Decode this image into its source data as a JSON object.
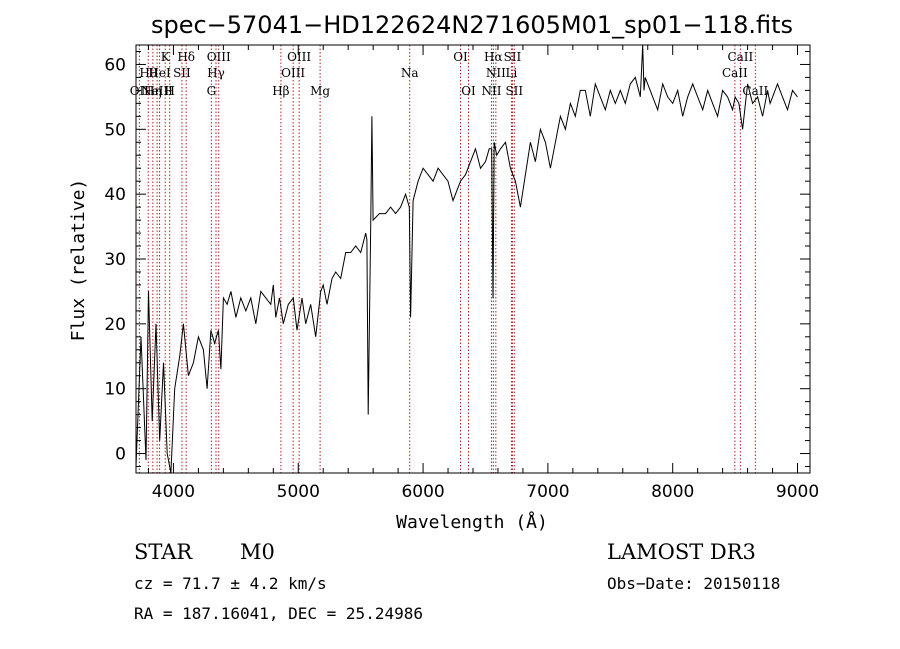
{
  "chart_data": {
    "type": "line",
    "title": "spec−57041−HD122624N271605M01_sp01−118.fits",
    "xlabel": "Wavelength (Å)",
    "ylabel": "Flux (relative)",
    "xlim": [
      3700,
      9100
    ],
    "ylim": [
      -3,
      63
    ],
    "xticks": [
      4000,
      5000,
      6000,
      7000,
      8000,
      9000
    ],
    "yticks": [
      0,
      10,
      20,
      30,
      40,
      50,
      60
    ],
    "grid": false,
    "series": [
      {
        "x": [
          3700,
          3740,
          3780,
          3800,
          3830,
          3860,
          3890,
          3920,
          3950,
          3980,
          4010,
          4050,
          4080,
          4120,
          4160,
          4200,
          4240,
          4270,
          4300,
          4330,
          4360,
          4380,
          4400,
          4430,
          4460,
          4500,
          4540,
          4580,
          4620,
          4660,
          4700,
          4740,
          4780,
          4800,
          4820,
          4850,
          4880,
          4920,
          4960,
          4990,
          5030,
          5060,
          5100,
          5140,
          5180,
          5200,
          5230,
          5270,
          5300,
          5340,
          5380,
          5420,
          5460,
          5500,
          5540,
          5550,
          5560,
          5580,
          5590,
          5600,
          5650,
          5700,
          5740,
          5780,
          5820,
          5860,
          5890,
          5900,
          5920,
          5960,
          6000,
          6040,
          6080,
          6120,
          6160,
          6200,
          6240,
          6280,
          6300,
          6340,
          6380,
          6420,
          6460,
          6500,
          6530,
          6550,
          6560,
          6570,
          6590,
          6620,
          6660,
          6700,
          6740,
          6780,
          6820,
          6860,
          6900,
          6940,
          6980,
          7020,
          7060,
          7100,
          7140,
          7180,
          7220,
          7260,
          7300,
          7340,
          7380,
          7420,
          7460,
          7500,
          7540,
          7580,
          7620,
          7660,
          7700,
          7740,
          7760,
          7770,
          7780,
          7800,
          7840,
          7880,
          7920,
          7960,
          8000,
          8040,
          8080,
          8120,
          8160,
          8200,
          8240,
          8280,
          8320,
          8360,
          8400,
          8440,
          8480,
          8500,
          8530,
          8560,
          8600,
          8640,
          8680,
          8720,
          8760,
          8780,
          8800,
          8840,
          8880,
          8920,
          8960,
          9000
        ],
        "y": [
          -2,
          18,
          -1,
          25,
          5,
          20,
          2,
          14,
          0,
          -3,
          10,
          15,
          20,
          12,
          14,
          18,
          16,
          10,
          19,
          17,
          19,
          13,
          24,
          23,
          25,
          21,
          24,
          22,
          24,
          20,
          25,
          24,
          23,
          26,
          21,
          24,
          20,
          23,
          24,
          19,
          24,
          20,
          23,
          18,
          25,
          26,
          23,
          27,
          28,
          27,
          31,
          31,
          32,
          31,
          34,
          33,
          6,
          35,
          52,
          36,
          37,
          37,
          38,
          37,
          38,
          40,
          38,
          21,
          39,
          42,
          44,
          43,
          42,
          44,
          43,
          42,
          39,
          41,
          42,
          43,
          45,
          47,
          44,
          45,
          47,
          47,
          24,
          48,
          46,
          47,
          48,
          44,
          42,
          38,
          43,
          48,
          45,
          50,
          48,
          44,
          48,
          52,
          50,
          54,
          52,
          56,
          56,
          52,
          57,
          55,
          53,
          56,
          54,
          56,
          54,
          57,
          58,
          55,
          63,
          56,
          58,
          57,
          55,
          53,
          57,
          55,
          54,
          56,
          52,
          55,
          57,
          55,
          53,
          56,
          54,
          52,
          56,
          55,
          53,
          55,
          54,
          50,
          57,
          54,
          55,
          52,
          56,
          54,
          55,
          57,
          55,
          53,
          56,
          55
        ]
      }
    ],
    "emission_lines": [
      {
        "wl": 3727,
        "top": "OII"
      },
      {
        "wl": 3798,
        "top": "Hθ"
      },
      {
        "wl": 3835,
        "top": "Hη"
      },
      {
        "wl": 3869,
        "top": "NeIII"
      },
      {
        "wl": 3889,
        "top": "HeI"
      },
      {
        "wl": 3934,
        "top": "K"
      },
      {
        "wl": 3970,
        "top": "H"
      },
      {
        "wl": 4068,
        "top": "SII"
      },
      {
        "wl": 4102,
        "top": "Hδ"
      },
      {
        "wl": 4304,
        "top": "G"
      },
      {
        "wl": 4341,
        "top": "Hγ"
      },
      {
        "wl": 4363,
        "top": "OIII"
      },
      {
        "wl": 4861,
        "top": "Hβ"
      },
      {
        "wl": 4959,
        "top": "OIII"
      },
      {
        "wl": 5007,
        "top": "OIII"
      },
      {
        "wl": 5175,
        "top": "Mg"
      },
      {
        "wl": 5893,
        "top": "Na"
      },
      {
        "wl": 6300,
        "top": "OI"
      },
      {
        "wl": 6364,
        "top": "OI"
      },
      {
        "wl": 6548,
        "top": "NII"
      },
      {
        "wl": 6563,
        "top": "Hα"
      },
      {
        "wl": 6583,
        "top": "NII"
      },
      {
        "wl": 6708,
        "top": "Li"
      },
      {
        "wl": 6716,
        "top": "SII"
      },
      {
        "wl": 6731,
        "top": "SII"
      },
      {
        "wl": 8498,
        "top": "CaII"
      },
      {
        "wl": 8542,
        "top": "CaII"
      },
      {
        "wl": 8662,
        "top": "CaII"
      }
    ],
    "line_labels": [
      {
        "wl": 3727,
        "row": 2,
        "text": "OII"
      },
      {
        "wl": 3798,
        "row": 1,
        "text": "Hθ"
      },
      {
        "wl": 3835,
        "row": 2,
        "text": "Hη"
      },
      {
        "wl": 3869,
        "row": 2,
        "text": "NeIII"
      },
      {
        "wl": 3889,
        "row": 1,
        "text": "HeI"
      },
      {
        "wl": 3934,
        "row": 0,
        "text": "K"
      },
      {
        "wl": 3970,
        "row": 2,
        "text": "H"
      },
      {
        "wl": 4068,
        "row": 1,
        "text": "SII"
      },
      {
        "wl": 4102,
        "row": 0,
        "text": "Hδ"
      },
      {
        "wl": 4304,
        "row": 2,
        "text": "G"
      },
      {
        "wl": 4341,
        "row": 1,
        "text": "Hγ"
      },
      {
        "wl": 4363,
        "row": 0,
        "text": "OIII"
      },
      {
        "wl": 4861,
        "row": 2,
        "text": "Hβ"
      },
      {
        "wl": 4959,
        "row": 1,
        "text": "OIII"
      },
      {
        "wl": 5007,
        "row": 0,
        "text": "OIII"
      },
      {
        "wl": 5175,
        "row": 2,
        "text": "Mg"
      },
      {
        "wl": 5893,
        "row": 1,
        "text": "Na"
      },
      {
        "wl": 6300,
        "row": 0,
        "text": "OI"
      },
      {
        "wl": 6364,
        "row": 2,
        "text": "OI"
      },
      {
        "wl": 6548,
        "row": 2,
        "text": "NII"
      },
      {
        "wl": 6563,
        "row": 0,
        "text": "Hα"
      },
      {
        "wl": 6583,
        "row": 1,
        "text": "NII"
      },
      {
        "wl": 6708,
        "row": 1,
        "text": "Li"
      },
      {
        "wl": 6716,
        "row": 0,
        "text": "SII"
      },
      {
        "wl": 6731,
        "row": 2,
        "text": "SII"
      },
      {
        "wl": 8498,
        "row": 1,
        "text": "CaII"
      },
      {
        "wl": 8542,
        "row": 0,
        "text": "CaII"
      },
      {
        "wl": 8662,
        "row": 2,
        "text": "CaII"
      }
    ],
    "colors": {
      "spectrum": "#000000",
      "lines": "#b22222",
      "axes": "#000000"
    }
  },
  "footer": {
    "object_class": "STAR",
    "subclass": "M0",
    "survey": "LAMOST DR3",
    "cz": "cz = 71.7 ± 4.2 km/s",
    "obs_date": "Obs−Date: 20150118",
    "coords": "RA = 187.16041, DEC =  25.24986"
  }
}
